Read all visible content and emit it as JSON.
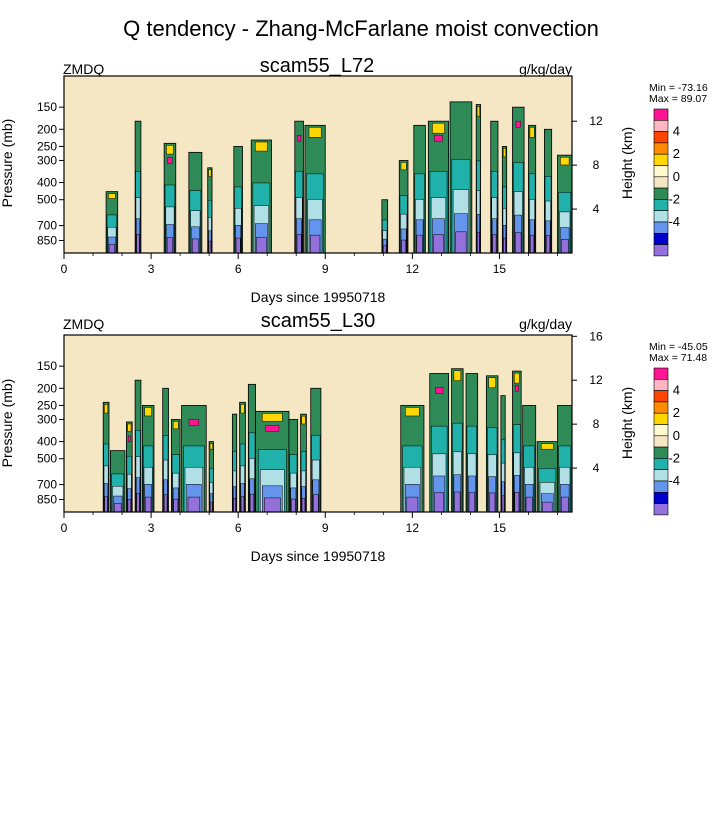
{
  "figure_title": "Q tendency - Zhang-McFarlane moist convection",
  "chart_data": [
    {
      "type": "heatmap",
      "title": "scam55_L72",
      "left_label": "ZMDQ",
      "units": "g/kg/day",
      "xlabel": "Days since 19950718",
      "ylabel": "Pressure (mb)",
      "ylabel_right": "Height (km)",
      "xlim": [
        0,
        17.5
      ],
      "x_ticks": [
        "0",
        "3",
        "6",
        "9",
        "12",
        "15"
      ],
      "y_ticks": [
        "150",
        "200",
        "250",
        "300",
        "400",
        "500",
        "700",
        "850"
      ],
      "y_ticks_right": [
        "4",
        "8",
        "12"
      ],
      "min_label": "Min = -73.16",
      "max_label": "Max =  89.07",
      "colorbar_labels": [
        "4",
        "2",
        "0",
        "-2",
        "-4"
      ],
      "colorbar_colors": [
        "#ff1493",
        "#ffb6c1",
        "#ff4500",
        "#ff8c00",
        "#ffd700",
        "#fffacd",
        "#f5e6c4",
        "#2e8b57",
        "#20b2aa",
        "#b0e0e6",
        "#6495ed",
        "#0000cd",
        "#9370db"
      ],
      "background_color": "#f5e6c4",
      "convective_events": [
        {
          "start": 1.45,
          "end": 1.85,
          "top_mb": 450
        },
        {
          "start": 2.45,
          "end": 2.65,
          "top_mb": 180
        },
        {
          "start": 3.45,
          "end": 3.85,
          "top_mb": 240
        },
        {
          "start": 4.3,
          "end": 4.75,
          "top_mb": 270
        },
        {
          "start": 4.95,
          "end": 5.1,
          "top_mb": 330
        },
        {
          "start": 5.85,
          "end": 6.15,
          "top_mb": 250
        },
        {
          "start": 6.45,
          "end": 7.15,
          "top_mb": 230
        },
        {
          "start": 7.95,
          "end": 8.25,
          "top_mb": 180
        },
        {
          "start": 8.3,
          "end": 9.0,
          "top_mb": 190
        },
        {
          "start": 10.95,
          "end": 11.15,
          "top_mb": 500
        },
        {
          "start": 11.55,
          "end": 11.85,
          "top_mb": 300
        },
        {
          "start": 12.05,
          "end": 12.45,
          "top_mb": 190
        },
        {
          "start": 12.55,
          "end": 13.25,
          "top_mb": 180
        },
        {
          "start": 13.3,
          "end": 14.05,
          "top_mb": 140
        },
        {
          "start": 14.2,
          "end": 14.35,
          "top_mb": 145
        },
        {
          "start": 14.7,
          "end": 14.95,
          "top_mb": 180
        },
        {
          "start": 15.1,
          "end": 15.25,
          "top_mb": 250
        },
        {
          "start": 15.45,
          "end": 15.85,
          "top_mb": 150
        },
        {
          "start": 16.0,
          "end": 16.25,
          "top_mb": 190
        },
        {
          "start": 16.55,
          "end": 16.8,
          "top_mb": 200
        },
        {
          "start": 17.0,
          "end": 17.5,
          "top_mb": 280
        }
      ]
    },
    {
      "type": "heatmap",
      "title": "scam55_L30",
      "left_label": "ZMDQ",
      "units": "g/kg/day",
      "xlabel": "Days since 19950718",
      "ylabel": "Pressure (mb)",
      "ylabel_right": "Height (km)",
      "xlim": [
        0,
        17.5
      ],
      "x_ticks": [
        "0",
        "3",
        "6",
        "9",
        "12",
        "15"
      ],
      "y_ticks": [
        "150",
        "200",
        "250",
        "300",
        "400",
        "500",
        "700",
        "850"
      ],
      "y_ticks_right": [
        "4",
        "8",
        "12",
        "16"
      ],
      "min_label": "Min = -45.05",
      "max_label": "Max =  71.48",
      "colorbar_labels": [
        "4",
        "2",
        "0",
        "-2",
        "-4"
      ],
      "colorbar_colors": [
        "#ff1493",
        "#ffb6c1",
        "#ff4500",
        "#ff8c00",
        "#ffd700",
        "#fffacd",
        "#f5e6c4",
        "#2e8b57",
        "#20b2aa",
        "#b0e0e6",
        "#6495ed",
        "#0000cd",
        "#9370db"
      ],
      "background_color": "#f5e6c4",
      "convective_events": [
        {
          "start": 1.35,
          "end": 1.55,
          "top_mb": 240
        },
        {
          "start": 1.6,
          "end": 2.1,
          "top_mb": 450
        },
        {
          "start": 2.15,
          "end": 2.35,
          "top_mb": 310
        },
        {
          "start": 2.45,
          "end": 2.65,
          "top_mb": 180
        },
        {
          "start": 2.7,
          "end": 3.1,
          "top_mb": 250
        },
        {
          "start": 3.4,
          "end": 3.6,
          "top_mb": 200
        },
        {
          "start": 3.7,
          "end": 4.0,
          "top_mb": 300
        },
        {
          "start": 4.05,
          "end": 4.9,
          "top_mb": 250
        },
        {
          "start": 5.0,
          "end": 5.15,
          "top_mb": 400
        },
        {
          "start": 5.8,
          "end": 5.95,
          "top_mb": 280
        },
        {
          "start": 6.05,
          "end": 6.25,
          "top_mb": 240
        },
        {
          "start": 6.35,
          "end": 6.6,
          "top_mb": 190
        },
        {
          "start": 6.6,
          "end": 7.75,
          "top_mb": 270
        },
        {
          "start": 7.75,
          "end": 8.05,
          "top_mb": 300
        },
        {
          "start": 8.15,
          "end": 8.35,
          "top_mb": 280
        },
        {
          "start": 8.5,
          "end": 8.85,
          "top_mb": 200
        },
        {
          "start": 11.6,
          "end": 12.4,
          "top_mb": 250
        },
        {
          "start": 12.6,
          "end": 13.25,
          "top_mb": 165
        },
        {
          "start": 13.35,
          "end": 13.75,
          "top_mb": 155
        },
        {
          "start": 13.85,
          "end": 14.25,
          "top_mb": 165
        },
        {
          "start": 14.55,
          "end": 14.95,
          "top_mb": 170
        },
        {
          "start": 15.05,
          "end": 15.2,
          "top_mb": 220
        },
        {
          "start": 15.45,
          "end": 15.75,
          "top_mb": 160
        },
        {
          "start": 15.8,
          "end": 16.25,
          "top_mb": 250
        },
        {
          "start": 16.3,
          "end": 17.0,
          "top_mb": 400
        },
        {
          "start": 17.0,
          "end": 17.5,
          "top_mb": 250
        }
      ]
    }
  ]
}
